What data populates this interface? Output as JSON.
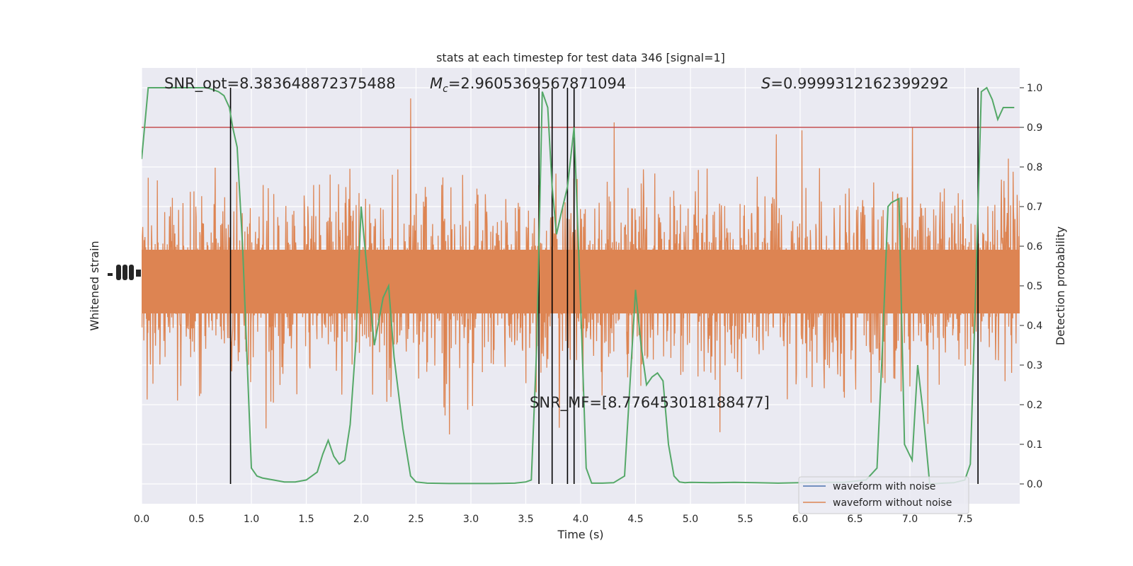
{
  "chart_data": {
    "type": "line",
    "title": "stats at each timestep for test data 346 [signal=1]",
    "xlabel": "Time (s)",
    "ylabel_left": "Whitened strain",
    "ylabel_right": "Detection probability",
    "xlim": [
      0,
      8.0
    ],
    "ylim_right": [
      -0.05,
      1.05
    ],
    "x_ticks": [
      "0.0",
      "0.5",
      "1.0",
      "1.5",
      "2.0",
      "2.5",
      "3.0",
      "3.5",
      "4.0",
      "4.5",
      "5.0",
      "5.5",
      "6.0",
      "6.5",
      "7.0",
      "7.5"
    ],
    "x_tick_values": [
      0,
      0.5,
      1,
      1.5,
      2,
      2.5,
      3,
      3.5,
      4,
      4.5,
      5,
      5.5,
      6,
      6.5,
      7,
      7.5
    ],
    "y_ticks_right": [
      "0.0",
      "0.1",
      "0.2",
      "0.3",
      "0.4",
      "0.5",
      "0.6",
      "0.7",
      "0.8",
      "0.9",
      "1.0"
    ],
    "y_tick_values_right": [
      0,
      0.1,
      0.2,
      0.3,
      0.4,
      0.5,
      0.6,
      0.7,
      0.8,
      0.9,
      1.0
    ],
    "grid": true,
    "legend_position": "bottom-right",
    "annotations": {
      "snr_opt": "SNR_opt=8.383648872375488",
      "mc_symbol": "M",
      "mc_sub": "c",
      "mc_value": "=2.9605369567871094",
      "s_symbol": "S",
      "s_value": "=0.9999312162399292",
      "snr_mf": "SNR_MF=[8.776453018188477]"
    },
    "threshold": 0.9,
    "vertical_markers": [
      0.81,
      3.62,
      3.74,
      3.88,
      3.94,
      7.62
    ],
    "series": [
      {
        "name": "waveform with noise",
        "color": "#4c72b0"
      },
      {
        "name": "waveform without noise",
        "color": "#dd8452"
      },
      {
        "color": "#55a868",
        "x": [
          0.0,
          0.06,
          0.12,
          0.2,
          0.3,
          0.4,
          0.5,
          0.6,
          0.7,
          0.75,
          0.8,
          0.83,
          0.87,
          0.92,
          1.0,
          1.05,
          1.1,
          1.2,
          1.3,
          1.4,
          1.5,
          1.55,
          1.6,
          1.65,
          1.7,
          1.75,
          1.8,
          1.85,
          1.9,
          1.95,
          2.0,
          2.05,
          2.12,
          2.2,
          2.25,
          2.3,
          2.38,
          2.45,
          2.5,
          2.6,
          2.8,
          3.0,
          3.2,
          3.4,
          3.5,
          3.55,
          3.6,
          3.65,
          3.7,
          3.74,
          3.78,
          3.82,
          3.88,
          3.94,
          4.0,
          4.05,
          4.1,
          4.2,
          4.3,
          4.4,
          4.5,
          4.55,
          4.6,
          4.65,
          4.7,
          4.75,
          4.8,
          4.85,
          4.9,
          4.95,
          5.0,
          5.2,
          5.4,
          5.6,
          5.8,
          6.0,
          6.2,
          6.4,
          6.6,
          6.7,
          6.75,
          6.8,
          6.83,
          6.9,
          6.95,
          7.02,
          7.07,
          7.12,
          7.18,
          7.2,
          7.3,
          7.4,
          7.5,
          7.55,
          7.6,
          7.65,
          7.7,
          7.75,
          7.8,
          7.85,
          7.9,
          7.95
        ],
        "y": [
          0.82,
          1.0,
          1.0,
          1.0,
          1.0,
          1.0,
          1.0,
          1.0,
          0.99,
          0.98,
          0.95,
          0.9,
          0.85,
          0.6,
          0.04,
          0.02,
          0.015,
          0.01,
          0.005,
          0.005,
          0.01,
          0.02,
          0.03,
          0.075,
          0.11,
          0.07,
          0.05,
          0.06,
          0.15,
          0.35,
          0.7,
          0.55,
          0.35,
          0.47,
          0.5,
          0.32,
          0.14,
          0.02,
          0.005,
          0.002,
          0.001,
          0.001,
          0.001,
          0.002,
          0.005,
          0.01,
          0.35,
          0.99,
          0.95,
          0.75,
          0.63,
          0.68,
          0.75,
          0.9,
          0.45,
          0.04,
          0.002,
          0.002,
          0.003,
          0.02,
          0.49,
          0.35,
          0.25,
          0.27,
          0.28,
          0.26,
          0.1,
          0.02,
          0.005,
          0.003,
          0.004,
          0.003,
          0.004,
          0.003,
          0.002,
          0.003,
          0.004,
          0.004,
          0.01,
          0.04,
          0.35,
          0.7,
          0.71,
          0.72,
          0.1,
          0.06,
          0.3,
          0.18,
          0.0,
          0.0,
          0.002,
          0.003,
          0.01,
          0.05,
          0.5,
          0.99,
          1.0,
          0.97,
          0.92,
          0.95,
          0.95,
          0.95
        ]
      }
    ],
    "colors": {
      "noise": "#dd8452",
      "probability": "#55a868",
      "threshold": "#c44e52",
      "marker": "#000000",
      "axes_bg": "#eaeaf2",
      "grid": "#ffffff"
    }
  }
}
